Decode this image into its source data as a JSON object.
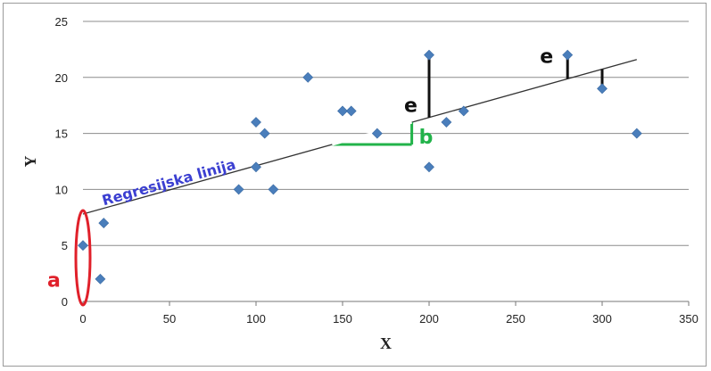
{
  "chart_data": {
    "type": "scatter",
    "xlabel": "X",
    "ylabel": "Y",
    "xlim": [
      0,
      350
    ],
    "ylim": [
      0,
      25
    ],
    "x_ticks": [
      0,
      50,
      100,
      150,
      200,
      250,
      300,
      350
    ],
    "y_ticks": [
      0,
      5,
      10,
      15,
      20,
      25
    ],
    "grid": "horizontal",
    "points": [
      {
        "x": 0,
        "y": 5
      },
      {
        "x": 10,
        "y": 2
      },
      {
        "x": 12,
        "y": 7
      },
      {
        "x": 90,
        "y": 10
      },
      {
        "x": 100,
        "y": 16
      },
      {
        "x": 100,
        "y": 12
      },
      {
        "x": 105,
        "y": 15
      },
      {
        "x": 110,
        "y": 10
      },
      {
        "x": 130,
        "y": 20
      },
      {
        "x": 150,
        "y": 17
      },
      {
        "x": 155,
        "y": 17
      },
      {
        "x": 170,
        "y": 15
      },
      {
        "x": 200,
        "y": 22
      },
      {
        "x": 200,
        "y": 12
      },
      {
        "x": 210,
        "y": 16
      },
      {
        "x": 220,
        "y": 17
      },
      {
        "x": 280,
        "y": 22
      },
      {
        "x": 300,
        "y": 19
      },
      {
        "x": 320,
        "y": 15
      }
    ],
    "regression_line": {
      "x1": 0,
      "y1": 7.8,
      "x2": 320,
      "y2": 21.6,
      "label": "Regresijska linija"
    },
    "annotations": {
      "intercept_label": "a",
      "slope_label": "b",
      "residual_label": "e"
    },
    "colors": {
      "points": "#4a7ebb",
      "regression_label": "#3b3fd1",
      "intercept": "#e0202a",
      "slope": "#22b34a",
      "residual": "#111111",
      "grid": "#8c8c8c"
    }
  }
}
